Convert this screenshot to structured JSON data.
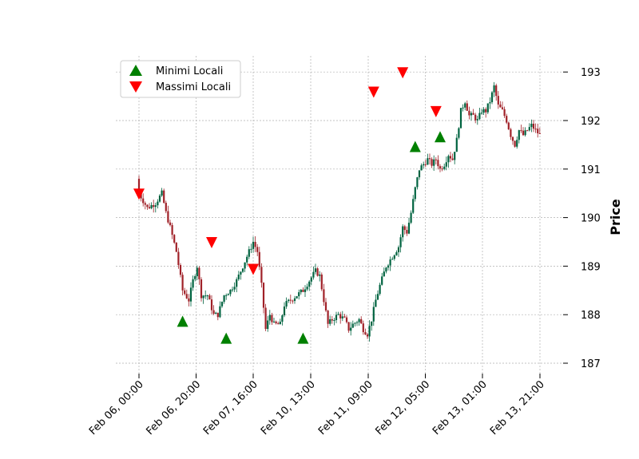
{
  "chart_data": {
    "type": "candlestick",
    "ylabel": "Price",
    "ylim": [
      186.8,
      193.35
    ],
    "yticks": [
      187,
      188,
      189,
      190,
      191,
      192,
      193
    ],
    "xtick_labels": [
      "Feb 06, 00:00",
      "Feb 06, 20:00",
      "Feb 07, 16:00",
      "Feb 10, 13:00",
      "Feb 11, 09:00",
      "Feb 12, 05:00",
      "Feb 13, 01:00",
      "Feb 13, 21:00"
    ],
    "grid": true,
    "legend": {
      "placement": "top-left",
      "entries": [
        {
          "label": "Minimi Locali",
          "marker": "triangle-up",
          "color": "#008000"
        },
        {
          "label": "Massimi Locali",
          "marker": "triangle-down",
          "color": "#ff0000"
        }
      ]
    },
    "colors": {
      "up": "#006340",
      "down": "#a02128"
    },
    "close_path": [
      [
        0,
        190.5
      ],
      [
        4,
        190.2
      ],
      [
        8,
        190.3
      ],
      [
        11,
        190.5
      ],
      [
        13,
        190.1
      ],
      [
        15,
        189.8
      ],
      [
        18,
        189.3
      ],
      [
        21,
        188.5
      ],
      [
        24,
        188.3
      ],
      [
        26,
        188.7
      ],
      [
        28,
        189.0
      ],
      [
        30,
        188.4
      ],
      [
        33,
        188.4
      ],
      [
        36,
        188.0
      ],
      [
        38,
        188.0
      ],
      [
        41,
        188.4
      ],
      [
        44,
        188.5
      ],
      [
        47,
        188.7
      ],
      [
        50,
        189.0
      ],
      [
        53,
        189.3
      ],
      [
        55,
        189.5
      ],
      [
        57,
        189.3
      ],
      [
        59,
        188.6
      ],
      [
        61,
        187.7
      ],
      [
        63,
        188.0
      ],
      [
        65,
        187.8
      ],
      [
        68,
        187.8
      ],
      [
        70,
        188.2
      ],
      [
        73,
        188.3
      ],
      [
        76,
        188.4
      ],
      [
        79,
        188.5
      ],
      [
        82,
        188.7
      ],
      [
        85,
        188.9
      ],
      [
        87,
        188.8
      ],
      [
        89,
        188.3
      ],
      [
        91,
        187.8
      ],
      [
        93,
        187.9
      ],
      [
        96,
        188.0
      ],
      [
        99,
        187.9
      ],
      [
        101,
        187.7
      ],
      [
        103,
        187.8
      ],
      [
        106,
        187.9
      ],
      [
        108,
        187.7
      ],
      [
        110,
        187.6
      ],
      [
        112,
        187.9
      ],
      [
        114,
        188.3
      ],
      [
        116,
        188.6
      ],
      [
        119,
        189.0
      ],
      [
        122,
        189.2
      ],
      [
        125,
        189.4
      ],
      [
        127,
        189.8
      ],
      [
        129,
        189.7
      ],
      [
        131,
        190.1
      ],
      [
        133,
        190.6
      ],
      [
        135,
        191.0
      ],
      [
        137,
        191.1
      ],
      [
        139,
        191.2
      ],
      [
        141,
        191.1
      ],
      [
        143,
        191.2
      ],
      [
        145,
        191.0
      ],
      [
        147,
        191.1
      ],
      [
        149,
        191.3
      ],
      [
        151,
        191.2
      ],
      [
        153,
        191.6
      ],
      [
        155,
        192.2
      ],
      [
        157,
        192.4
      ],
      [
        159,
        192.1
      ],
      [
        161,
        192.1
      ],
      [
        163,
        192.0
      ],
      [
        165,
        192.2
      ],
      [
        167,
        192.2
      ],
      [
        169,
        192.4
      ],
      [
        171,
        192.7
      ],
      [
        173,
        192.3
      ],
      [
        175,
        192.2
      ],
      [
        177,
        192.0
      ],
      [
        179,
        191.7
      ],
      [
        181,
        191.5
      ],
      [
        183,
        191.8
      ],
      [
        185,
        191.7
      ],
      [
        187,
        191.8
      ],
      [
        189,
        191.9
      ],
      [
        191,
        191.8
      ],
      [
        193,
        191.7
      ]
    ],
    "local_minima": [
      [
        21,
        187.85
      ],
      [
        42,
        187.5
      ],
      [
        79,
        187.5
      ],
      [
        133,
        191.45
      ],
      [
        145,
        191.65
      ]
    ],
    "local_maxima": [
      [
        0,
        190.5
      ],
      [
        35,
        189.5
      ],
      [
        55,
        188.95
      ],
      [
        113,
        192.6
      ],
      [
        127,
        193.0
      ],
      [
        143,
        192.2
      ]
    ]
  }
}
